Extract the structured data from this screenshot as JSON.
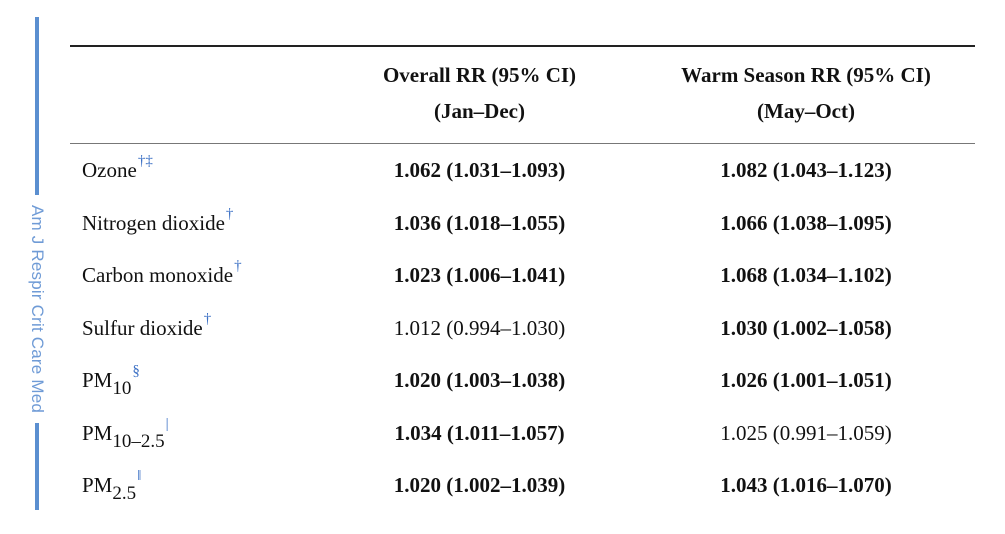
{
  "side_label": "Am J Respir Crit Care Med",
  "table": {
    "columns": [
      {
        "title": "Overall RR (95% CI)",
        "subtitle": "(Jan–Dec)"
      },
      {
        "title": "Warm Season RR (95% CI)",
        "subtitle": "(May–Oct)"
      }
    ],
    "rows": [
      {
        "name": "Ozone",
        "sub": "",
        "fn": "†‡",
        "overall": "1.062 (1.031–1.093)",
        "overall_bold": true,
        "warm": "1.082 (1.043–1.123)",
        "warm_bold": true
      },
      {
        "name": "Nitrogen dioxide",
        "sub": "",
        "fn": "†",
        "overall": "1.036 (1.018–1.055)",
        "overall_bold": true,
        "warm": "1.066 (1.038–1.095)",
        "warm_bold": true
      },
      {
        "name": "Carbon monoxide",
        "sub": "",
        "fn": "†",
        "overall": "1.023 (1.006–1.041)",
        "overall_bold": true,
        "warm": "1.068 (1.034–1.102)",
        "warm_bold": true
      },
      {
        "name": "Sulfur dioxide",
        "sub": "",
        "fn": "†",
        "overall": "1.012 (0.994–1.030)",
        "overall_bold": false,
        "warm": "1.030 (1.002–1.058)",
        "warm_bold": true
      },
      {
        "name": "PM",
        "sub": "10",
        "fn": "§",
        "overall": "1.020 (1.003–1.038)",
        "overall_bold": true,
        "warm": "1.026 (1.001–1.051)",
        "warm_bold": true
      },
      {
        "name": "PM",
        "sub": "10–2.5",
        "fn": "|",
        "overall": "1.034 (1.011–1.057)",
        "overall_bold": true,
        "warm": "1.025 (0.991–1.059)",
        "warm_bold": false
      },
      {
        "name": "PM",
        "sub": "2.5",
        "fn": "‖",
        "overall": "1.020 (1.002–1.039)",
        "overall_bold": true,
        "warm": "1.043 (1.016–1.070)",
        "warm_bold": true
      }
    ]
  }
}
